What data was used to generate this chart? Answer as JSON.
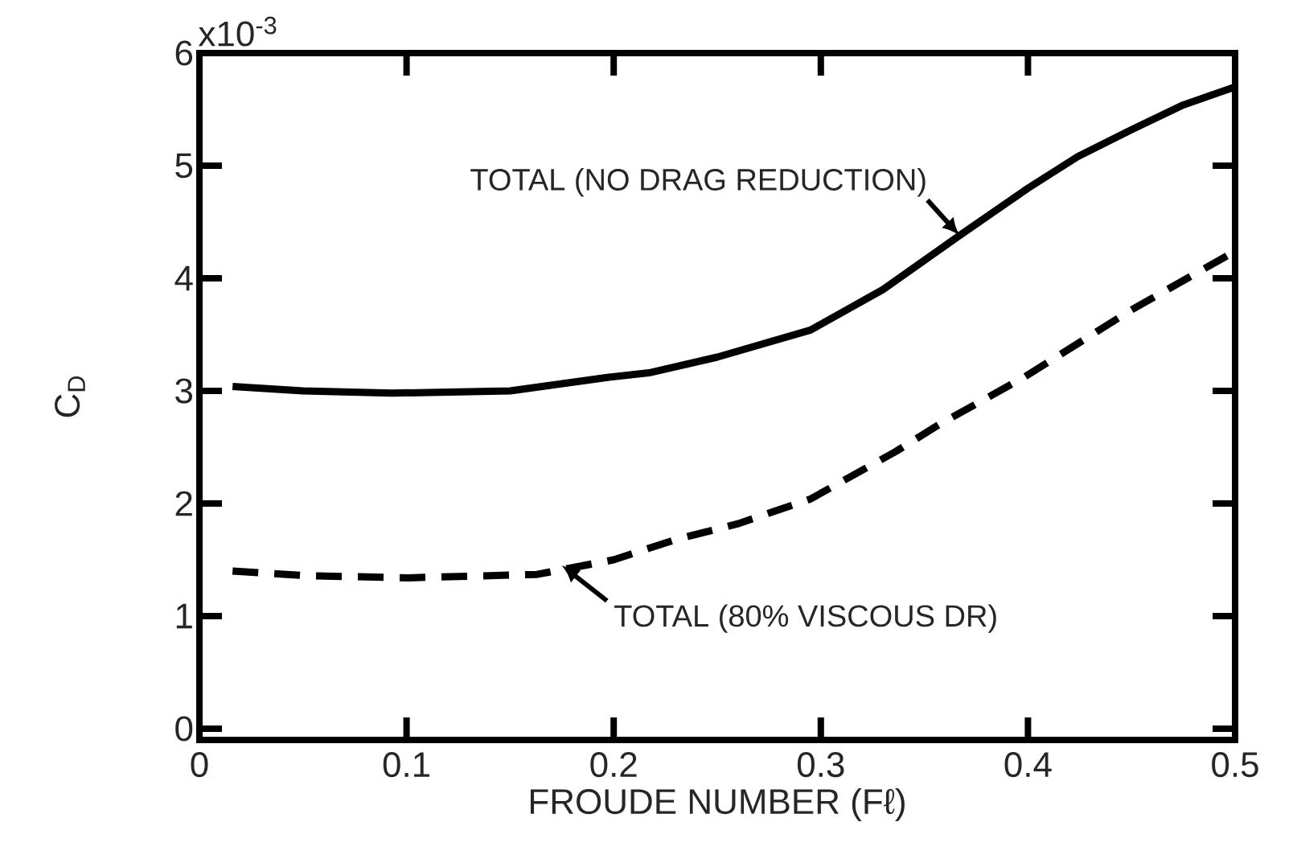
{
  "chart_data": {
    "type": "line",
    "xlabel": "FROUDE NUMBER (Fℓ)",
    "ylabel": "C$_{D}$",
    "xlim": [
      0,
      0.5
    ],
    "ylim": [
      -0.1,
      6
    ],
    "xticks": [
      0,
      0.1,
      0.2,
      0.3,
      0.4,
      0.5
    ],
    "yticks": [
      0,
      1,
      2,
      3,
      4,
      5,
      6
    ],
    "series": [
      {
        "color": "#000000",
        "line_style": "solid",
        "x": [
          0.016,
          0.05,
          0.093,
          0.15,
          0.197,
          0.217,
          0.25,
          0.295,
          0.33,
          0.367,
          0.4,
          0.424,
          0.45,
          0.475,
          0.5
        ],
        "values": [
          3.04,
          3.0,
          2.98,
          3.0,
          3.12,
          3.16,
          3.3,
          3.54,
          3.9,
          4.38,
          4.8,
          5.08,
          5.32,
          5.54,
          5.7
        ]
      },
      {
        "color": "#000000",
        "line_style": "dashed",
        "x": [
          0.016,
          0.05,
          0.101,
          0.163,
          0.2,
          0.23,
          0.26,
          0.295,
          0.336,
          0.357,
          0.398,
          0.45,
          0.5
        ],
        "values": [
          1.4,
          1.36,
          1.34,
          1.37,
          1.5,
          1.68,
          1.82,
          2.04,
          2.46,
          2.7,
          3.12,
          3.72,
          4.24
        ]
      }
    ],
    "annotations": [
      {
        "text": "TOTAL (NO DRAG REDUCTION)",
        "x": 0.367,
        "y": 4.38
      },
      {
        "text": "TOTAL (80% VISCOUS DR)",
        "x": 0.175,
        "y": 1.45
      },
      "x10$^{-3}$"
    ]
  }
}
